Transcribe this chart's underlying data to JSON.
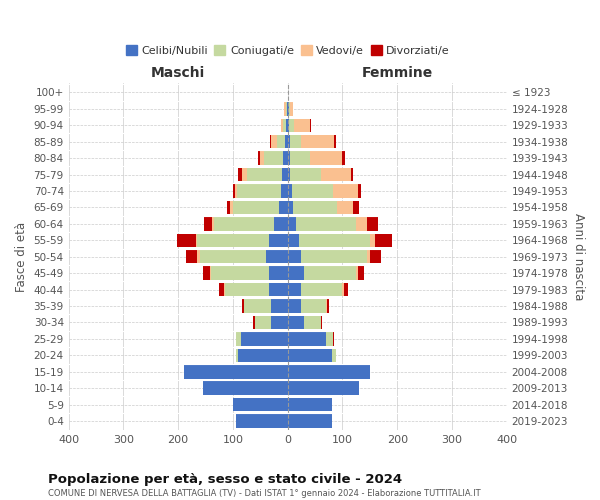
{
  "age_groups": [
    "0-4",
    "5-9",
    "10-14",
    "15-19",
    "20-24",
    "25-29",
    "30-34",
    "35-39",
    "40-44",
    "45-49",
    "50-54",
    "55-59",
    "60-64",
    "65-69",
    "70-74",
    "75-79",
    "80-84",
    "85-89",
    "90-94",
    "95-99",
    "100+"
  ],
  "birth_years": [
    "2019-2023",
    "2014-2018",
    "2009-2013",
    "2004-2008",
    "1999-2003",
    "1994-1998",
    "1989-1993",
    "1984-1988",
    "1979-1983",
    "1974-1978",
    "1969-1973",
    "1964-1968",
    "1959-1963",
    "1954-1958",
    "1949-1953",
    "1944-1948",
    "1939-1943",
    "1934-1938",
    "1929-1933",
    "1924-1928",
    "≤ 1923"
  ],
  "maschi": {
    "celibi": [
      95,
      100,
      155,
      190,
      90,
      85,
      30,
      30,
      35,
      35,
      40,
      35,
      25,
      15,
      12,
      10,
      8,
      5,
      3,
      2,
      0
    ],
    "coniugati": [
      0,
      0,
      0,
      0,
      5,
      10,
      30,
      50,
      80,
      105,
      120,
      130,
      110,
      85,
      80,
      65,
      35,
      15,
      5,
      2,
      0
    ],
    "vedovi": [
      0,
      0,
      0,
      0,
      0,
      0,
      0,
      0,
      2,
      2,
      5,
      3,
      3,
      5,
      5,
      8,
      8,
      10,
      5,
      2,
      0
    ],
    "divorziati": [
      0,
      0,
      0,
      0,
      0,
      0,
      3,
      3,
      8,
      12,
      20,
      35,
      15,
      5,
      3,
      8,
      3,
      2,
      0,
      0,
      0
    ]
  },
  "femmine": {
    "nubili": [
      80,
      80,
      130,
      150,
      80,
      70,
      30,
      25,
      25,
      30,
      25,
      20,
      15,
      10,
      8,
      5,
      5,
      5,
      3,
      2,
      0
    ],
    "coniugate": [
      0,
      0,
      0,
      0,
      8,
      12,
      30,
      45,
      75,
      95,
      120,
      130,
      110,
      80,
      75,
      55,
      35,
      20,
      8,
      3,
      0
    ],
    "vedove": [
      0,
      0,
      0,
      0,
      0,
      0,
      0,
      2,
      2,
      3,
      5,
      10,
      20,
      30,
      45,
      55,
      60,
      60,
      30,
      5,
      0
    ],
    "divorziate": [
      0,
      0,
      0,
      0,
      0,
      2,
      3,
      3,
      8,
      12,
      20,
      30,
      20,
      10,
      5,
      5,
      5,
      3,
      2,
      0,
      0
    ]
  },
  "colors": {
    "celibi": "#4472C4",
    "coniugati": "#C5D9A0",
    "vedovi": "#FAC090",
    "divorziati": "#C00000"
  },
  "xlim": 400,
  "title": "Popolazione per età, sesso e stato civile - 2024",
  "subtitle": "COMUNE DI NERVESA DELLA BATTAGLIA (TV) - Dati ISTAT 1° gennaio 2024 - Elaborazione TUTTITALIA.IT",
  "ylabel_left": "Fasce di età",
  "ylabel_right": "Anni di nascita",
  "xlabel_left": "Maschi",
  "xlabel_right": "Femmine",
  "bg_color": "#FFFFFF",
  "grid_color": "#CCCCCC"
}
